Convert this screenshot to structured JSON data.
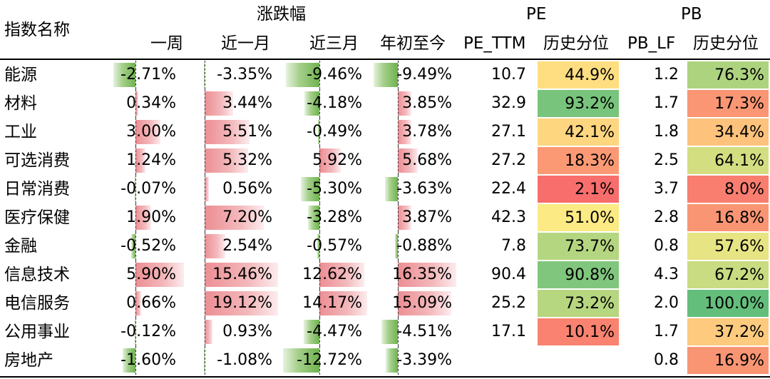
{
  "header": {
    "name_label": "指数名称",
    "change_group": "涨跌幅",
    "pe_group": "PE",
    "pb_group": "PB",
    "cols": {
      "w1": "一周",
      "m1": "近一月",
      "m3": "近三月",
      "ytd": "年初至今",
      "pe_ttm": "PE_TTM",
      "pe_pct": "历史分位",
      "pb_lf": "PB_LF",
      "pb_pct": "历史分位"
    }
  },
  "colors": {
    "positive_bar": "#ec8e93",
    "negative_bar": "#6fb24f",
    "heat_low": "#f8696b",
    "heat_mid": "#ffeb84",
    "heat_high": "#63be7b"
  },
  "rows": [
    {
      "name": "能源",
      "w1": "-2.71%",
      "m1": "-3.35%",
      "m3": "-9.46%",
      "ytd": "-9.49%",
      "pe_ttm": "10.7",
      "pe_pct": "44.9%",
      "pb_lf": "1.2",
      "pb_pct": "76.3%"
    },
    {
      "name": "材料",
      "w1": "0.34%",
      "m1": "3.44%",
      "m3": "-4.18%",
      "ytd": "3.85%",
      "pe_ttm": "32.9",
      "pe_pct": "93.2%",
      "pb_lf": "1.7",
      "pb_pct": "17.3%"
    },
    {
      "name": "工业",
      "w1": "3.00%",
      "m1": "5.51%",
      "m3": "-0.49%",
      "ytd": "3.78%",
      "pe_ttm": "27.1",
      "pe_pct": "42.1%",
      "pb_lf": "1.8",
      "pb_pct": "34.4%"
    },
    {
      "name": "可选消费",
      "w1": "1.24%",
      "m1": "5.32%",
      "m3": "5.92%",
      "ytd": "5.68%",
      "pe_ttm": "27.2",
      "pe_pct": "18.3%",
      "pb_lf": "2.5",
      "pb_pct": "64.1%"
    },
    {
      "name": "日常消费",
      "w1": "-0.07%",
      "m1": "0.56%",
      "m3": "-5.30%",
      "ytd": "-3.63%",
      "pe_ttm": "22.4",
      "pe_pct": "2.1%",
      "pb_lf": "3.7",
      "pb_pct": "8.0%"
    },
    {
      "name": "医疗保健",
      "w1": "1.90%",
      "m1": "7.20%",
      "m3": "-3.28%",
      "ytd": "3.87%",
      "pe_ttm": "42.3",
      "pe_pct": "51.0%",
      "pb_lf": "2.8",
      "pb_pct": "16.8%"
    },
    {
      "name": "金融",
      "w1": "-0.52%",
      "m1": "2.54%",
      "m3": "-0.57%",
      "ytd": "-0.88%",
      "pe_ttm": "7.8",
      "pe_pct": "73.7%",
      "pb_lf": "0.8",
      "pb_pct": "57.6%"
    },
    {
      "name": "信息技术",
      "w1": "5.90%",
      "m1": "15.46%",
      "m3": "12.62%",
      "ytd": "16.35%",
      "pe_ttm": "90.4",
      "pe_pct": "90.8%",
      "pb_lf": "4.3",
      "pb_pct": "67.2%"
    },
    {
      "name": "电信服务",
      "w1": "0.66%",
      "m1": "19.12%",
      "m3": "14.17%",
      "ytd": "15.09%",
      "pe_ttm": "25.2",
      "pe_pct": "73.2%",
      "pb_lf": "2.0",
      "pb_pct": "100.0%"
    },
    {
      "name": "公用事业",
      "w1": "-0.12%",
      "m1": "0.93%",
      "m3": "-4.47%",
      "ytd": "-4.51%",
      "pe_ttm": "17.1",
      "pe_pct": "10.1%",
      "pb_lf": "1.7",
      "pb_pct": "37.2%"
    },
    {
      "name": "房地产",
      "w1": "-1.60%",
      "m1": "-1.08%",
      "m3": "-12.72%",
      "ytd": "-3.39%",
      "pe_ttm": "",
      "pe_pct": "",
      "pb_lf": "0.8",
      "pb_pct": "16.9%"
    }
  ]
}
